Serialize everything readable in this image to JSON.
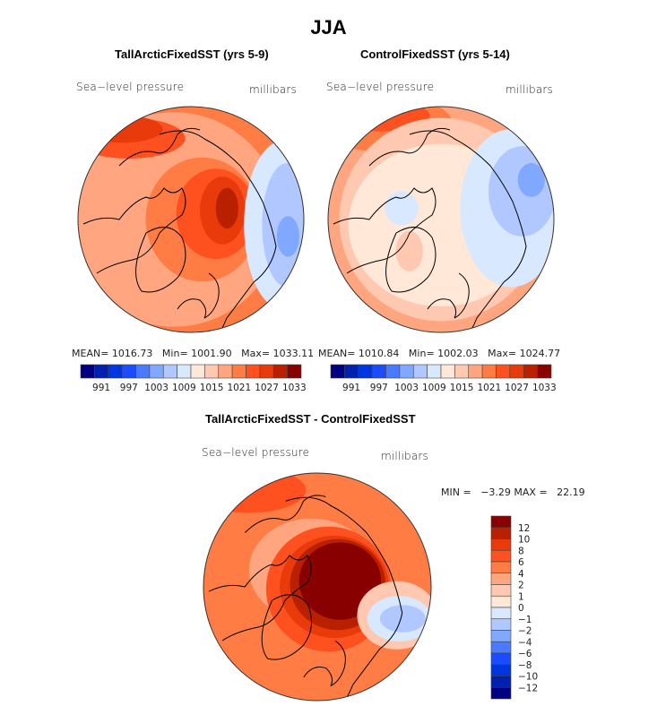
{
  "figure": {
    "title": "JJA"
  },
  "chart_data": [
    {
      "type": "heatmap",
      "projection": "north-polar-stereographic",
      "title": "TallArcticFixedSST (yrs 5-9)",
      "variable_label": "Sea−level pressure",
      "units_label": "millibars",
      "stats": {
        "mean_label": "MEAN=",
        "mean": "1016.73",
        "min_label": "Min=",
        "min": "1001.90",
        "max_label": "Max=",
        "max": "1033.11"
      },
      "colorbar": {
        "orientation": "horizontal",
        "levels": [
          988,
          991,
          994,
          997,
          1000,
          1003,
          1006,
          1009,
          1012,
          1015,
          1018,
          1021,
          1024,
          1027,
          1030,
          1033
        ],
        "tick_labels": [
          "991",
          "997",
          "1003",
          "1009",
          "1015",
          "1021",
          "1027",
          "1033"
        ]
      },
      "field_description": "High pressure (1027-1033 mb) over central Arctic / Siberian side; low (1003-1009 mb) over northeastern Asia/Pacific sector; 1015-1024 mb elsewhere",
      "contour_regions": [
        {
          "level_index": 10,
          "cx": -0.15,
          "cy": 0.0,
          "rx": 0.95,
          "ry": 0.95
        },
        {
          "level_index": 11,
          "cx": 0.1,
          "cy": 0.0,
          "rx": 0.5,
          "ry": 0.55
        },
        {
          "level_index": 12,
          "cx": 0.22,
          "cy": -0.05,
          "rx": 0.35,
          "ry": 0.4
        },
        {
          "level_index": 13,
          "cx": 0.28,
          "cy": -0.08,
          "rx": 0.2,
          "ry": 0.3
        },
        {
          "level_index": 14,
          "cx": 0.32,
          "cy": -0.1,
          "rx": 0.1,
          "ry": 0.18
        },
        {
          "level_index": 12,
          "cx": -0.55,
          "cy": -0.72,
          "rx": 0.5,
          "ry": 0.18
        },
        {
          "level_index": 13,
          "cx": -0.6,
          "cy": -0.8,
          "rx": 0.35,
          "ry": 0.12
        },
        {
          "level_index": 7,
          "cx": 0.82,
          "cy": 0.05,
          "rx": 0.35,
          "ry": 0.75
        },
        {
          "level_index": 6,
          "cx": 0.85,
          "cy": 0.05,
          "rx": 0.22,
          "ry": 0.55
        },
        {
          "level_index": 5,
          "cx": 0.86,
          "cy": 0.15,
          "rx": 0.1,
          "ry": 0.18
        }
      ]
    },
    {
      "type": "heatmap",
      "projection": "north-polar-stereographic",
      "title": "ControlFixedSST (yrs 5-14)",
      "variable_label": "Sea−level pressure",
      "units_label": "millibars",
      "stats": {
        "mean_label": "MEAN=",
        "mean": "1010.84",
        "min_label": "Min=",
        "min": "1002.03",
        "max_label": "Max=",
        "max": "1024.77"
      },
      "colorbar": {
        "orientation": "horizontal",
        "levels": [
          988,
          991,
          994,
          997,
          1000,
          1003,
          1006,
          1009,
          1012,
          1015,
          1018,
          1021,
          1024,
          1027,
          1030,
          1033
        ],
        "tick_labels": [
          "991",
          "997",
          "1003",
          "1009",
          "1015",
          "1021",
          "1027",
          "1033"
        ]
      },
      "field_description": "Mostly 1009-1012 mb over Arctic; low 1003-1006 mb over North Pacific sector; higher 1015-1024 mb on southern rim",
      "contour_regions": [
        {
          "level_index": 8,
          "cx": 0.0,
          "cy": 0.05,
          "rx": 0.82,
          "ry": 0.72
        },
        {
          "level_index": 7,
          "cx": 0.62,
          "cy": -0.1,
          "rx": 0.45,
          "ry": 0.7
        },
        {
          "level_index": 6,
          "cx": 0.72,
          "cy": -0.25,
          "rx": 0.3,
          "ry": 0.4
        },
        {
          "level_index": 5,
          "cx": 0.8,
          "cy": -0.35,
          "rx": 0.12,
          "ry": 0.15
        },
        {
          "level_index": 7,
          "cx": -0.35,
          "cy": -0.1,
          "rx": 0.15,
          "ry": 0.15
        },
        {
          "level_index": 9,
          "cx": -0.28,
          "cy": 0.28,
          "rx": 0.12,
          "ry": 0.18
        }
      ]
    },
    {
      "type": "heatmap",
      "projection": "north-polar-stereographic",
      "title": "TallArcticFixedSST - ControlFixedSST",
      "variable_label": "Sea−level pressure",
      "units_label": "millibars",
      "stats": {
        "min_label": "MIN =",
        "min": "−3.29",
        "max_label": "MAX =",
        "max": "22.19"
      },
      "colorbar": {
        "orientation": "vertical",
        "levels": [
          -14,
          -12,
          -10,
          -8,
          -6,
          -4,
          -2,
          -1,
          0,
          1,
          2,
          4,
          6,
          8,
          10,
          12,
          14
        ],
        "tick_labels": [
          "12",
          "10",
          "8",
          "6",
          "4",
          "2",
          "1",
          "0",
          "−1",
          "−2",
          "−4",
          "−6",
          "−8",
          "−10",
          "−12"
        ]
      },
      "field_description": "Strong positive anomaly (>12 mb) over central Arctic; 4-6 mb over most of domain; weak negative (-1 to -4 mb) over northeast Asia/Pacific sector",
      "contour_regions": [
        {
          "level_index": 10,
          "cx": -0.05,
          "cy": -0.15,
          "rx": 0.55,
          "ry": 0.45
        },
        {
          "level_index": 12,
          "cx": 0.1,
          "cy": 0.02,
          "rx": 0.55,
          "ry": 0.55
        },
        {
          "level_index": 13,
          "cx": 0.15,
          "cy": 0.0,
          "rx": 0.48,
          "ry": 0.45
        },
        {
          "level_index": 14,
          "cx": 0.18,
          "cy": -0.02,
          "rx": 0.42,
          "ry": 0.4
        },
        {
          "level_index": 15,
          "cx": 0.2,
          "cy": -0.05,
          "rx": 0.36,
          "ry": 0.34
        },
        {
          "level_index": 9,
          "cx": 0.7,
          "cy": 0.25,
          "rx": 0.35,
          "ry": 0.3
        },
        {
          "level_index": 7,
          "cx": 0.72,
          "cy": 0.28,
          "rx": 0.28,
          "ry": 0.2
        },
        {
          "level_index": 6,
          "cx": 0.75,
          "cy": 0.28,
          "rx": 0.2,
          "ry": 0.12
        }
      ]
    }
  ],
  "palette": [
    "#000080",
    "#0020b0",
    "#0036e0",
    "#1c4cff",
    "#4a7aff",
    "#80a8ff",
    "#b0c8ff",
    "#d8e8ff",
    "#ffe8d8",
    "#ffc8b0",
    "#ffa680",
    "#ff7c44",
    "#ff5020",
    "#e83a0a",
    "#b82000",
    "#880000"
  ],
  "border_color": "#000000"
}
